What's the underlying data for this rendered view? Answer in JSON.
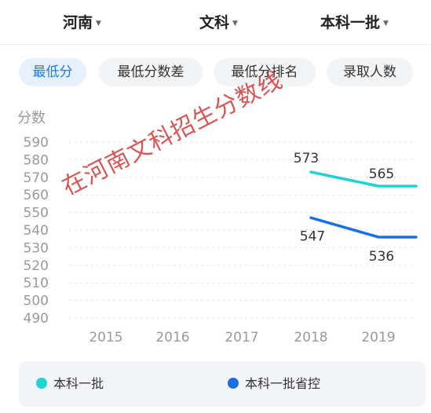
{
  "filters": {
    "province": "河南",
    "subject": "文科",
    "batch": "本科一批"
  },
  "tabs": [
    "最低分",
    "最低分数差",
    "最低分排名",
    "录取人数"
  ],
  "watermark": "在河南文科招生分数线",
  "colors": {
    "accent": "#1e7ce8",
    "series_1": "#1fd3d0",
    "series_2": "#1a6fe6",
    "watermark": "#c82828"
  },
  "chart_data": {
    "type": "line",
    "ylabel": "分数",
    "x": [
      "2015",
      "2016",
      "2017",
      "2018",
      "2019"
    ],
    "yticks": [
      590,
      580,
      570,
      560,
      550,
      540,
      530,
      520,
      510,
      500,
      490
    ],
    "ylim": [
      490,
      590
    ],
    "grid": true,
    "legend_position": "bottom",
    "series": [
      {
        "name": "本科一批",
        "values": [
          null,
          null,
          null,
          573,
          565
        ],
        "labels": [
          "573",
          "565"
        ],
        "color": "#1fd3d0"
      },
      {
        "name": "本科一批省控",
        "values": [
          null,
          null,
          null,
          547,
          536
        ],
        "labels": [
          "547",
          "536"
        ],
        "color": "#1a6fe6"
      }
    ]
  }
}
